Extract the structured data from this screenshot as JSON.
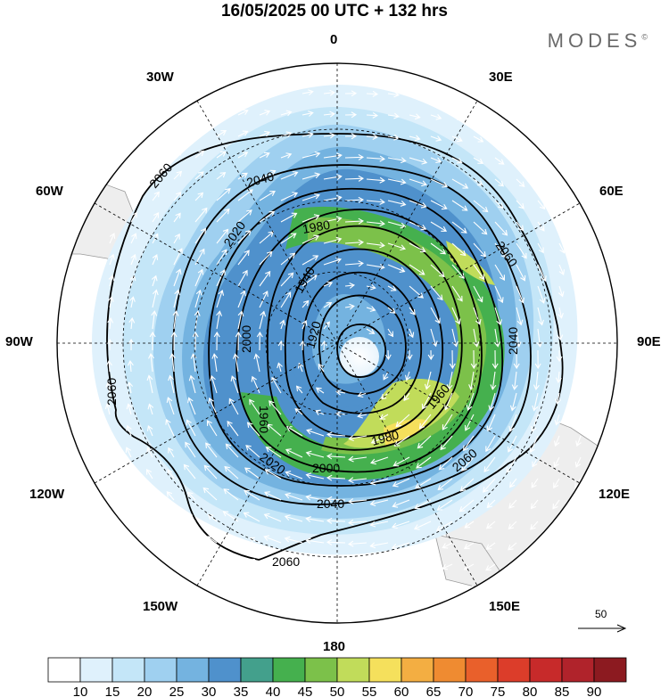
{
  "title": "16/05/2025  00 UTC  + 132 hrs",
  "brand": "MODES",
  "brand_mark": "©",
  "longitude_labels": {
    "n": "0",
    "nne": "30E",
    "ene": "60E",
    "e": "90E",
    "ese": "120E",
    "sse": "150E",
    "s": "180",
    "ssw": "150W",
    "wsw": "120W",
    "w": "90W",
    "wnw": "60W",
    "nnw": "30W"
  },
  "contour_labels": [
    "2060",
    "2040",
    "2020",
    "2000",
    "1980",
    "1960",
    "1940",
    "1920",
    "2060",
    "2040",
    "2020",
    "2000",
    "1980",
    "1960",
    "2060",
    "2040",
    "2060",
    "2060"
  ],
  "vector_scale_label": "50",
  "colorbar": {
    "ticks": [
      "10",
      "15",
      "20",
      "25",
      "30",
      "35",
      "40",
      "45",
      "50",
      "55",
      "60",
      "65",
      "70",
      "75",
      "80",
      "85",
      "90"
    ],
    "colors": [
      "#ffffff",
      "#dff1fc",
      "#c4e6f8",
      "#9fd0f0",
      "#74b3e0",
      "#4f91cc",
      "#43a08c",
      "#45b04e",
      "#7cc14a",
      "#c1dc5a",
      "#f5e05c",
      "#f3ae42",
      "#ef8b31",
      "#e9602b",
      "#dc3d2a",
      "#c72a2a",
      "#b0232b",
      "#8c1a20"
    ]
  },
  "colors": {
    "land": "#eeeeee",
    "coast": "#9a9a9a",
    "contour": "#000000",
    "vector": "#ffffff"
  }
}
